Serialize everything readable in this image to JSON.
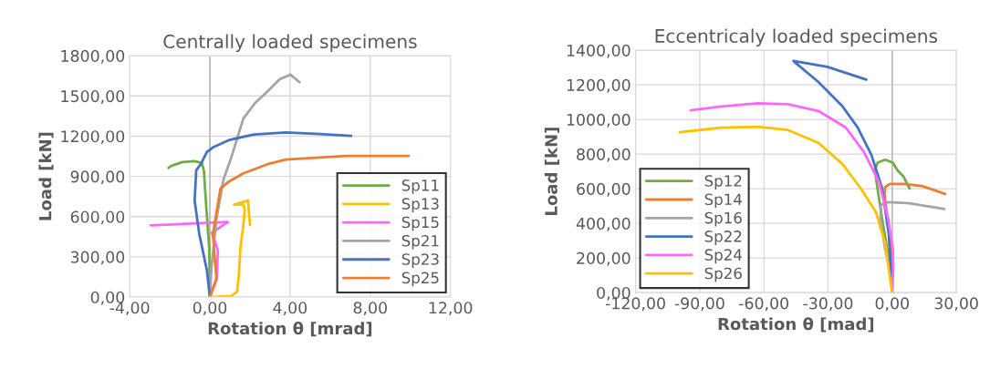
{
  "chart_data": [
    {
      "type": "line",
      "title": "Centrally loaded specimens",
      "xlabel": "Rotation θ [mrad]",
      "ylabel": "Load [kN]",
      "xlim": [
        -4,
        12
      ],
      "ylim": [
        0,
        1800
      ],
      "xticks": [
        {
          "value": -4,
          "label": "-4,00"
        },
        {
          "value": 0,
          "label": "0,00"
        },
        {
          "value": 4,
          "label": "4,00"
        },
        {
          "value": 8,
          "label": "8,00"
        },
        {
          "value": 12,
          "label": "12,00"
        }
      ],
      "yticks": [
        {
          "value": 0,
          "label": "0,00"
        },
        {
          "value": 300,
          "label": "300,00"
        },
        {
          "value": 600,
          "label": "600,00"
        },
        {
          "value": 900,
          "label": "900,00"
        },
        {
          "value": 1200,
          "label": "1200,00"
        },
        {
          "value": 1500,
          "label": "1500,00"
        },
        {
          "value": 1800,
          "label": "1800,00"
        }
      ],
      "grid": true,
      "legend": "bottom right",
      "marker": "none",
      "line_style": "solid",
      "series": [
        {
          "name": "Sp11",
          "color": "#70ad47",
          "x": [
            0,
            -0.03,
            -0.18,
            -0.3,
            -0.4,
            -0.76,
            -1.36,
            -1.9,
            -2.06
          ],
          "values": [
            0,
            360,
            672,
            944,
            1000,
            1014,
            1007,
            980,
            964
          ]
        },
        {
          "name": "Sp13",
          "color": "#ffc000",
          "x": [
            0,
            1.06,
            1.36,
            1.44,
            1.52,
            1.67,
            1.74,
            1.67,
            1.2,
            1.9,
            2.0
          ],
          "values": [
            0,
            7,
            40,
            154,
            358,
            538,
            652,
            690,
            690,
            720,
            540
          ]
        },
        {
          "name": "Sp15",
          "color": "#ff66ff",
          "x": [
            0,
            0.35,
            0.4,
            0.1,
            0.9,
            -2.95
          ],
          "values": [
            0,
            150,
            350,
            480,
            560,
            535
          ]
        },
        {
          "name": "Sp21",
          "color": "#a5a5a5",
          "x": [
            0,
            0.08,
            0.33,
            0.68,
            1.06,
            1.67,
            2.27,
            2.88,
            3.48,
            4.02,
            4.47
          ],
          "values": [
            0,
            222,
            584,
            878,
            1037,
            1331,
            1450,
            1535,
            1625,
            1659,
            1602
          ]
        },
        {
          "name": "Sp23",
          "color": "#4472c4",
          "x": [
            0,
            -0.15,
            -0.53,
            -0.76,
            -0.68,
            -0.45,
            -0.15,
            0.15,
            0.98,
            2.2,
            3.79,
            5.3,
            7.05
          ],
          "values": [
            0,
            200,
            471,
            720,
            946,
            991,
            1082,
            1116,
            1172,
            1213,
            1227,
            1218,
            1202
          ]
        },
        {
          "name": "Sp25",
          "color": "#ed7d31",
          "x": [
            0,
            0.33,
            0.15,
            0.53,
            0.9,
            1.67,
            2.88,
            3.79,
            6.8,
            9.92
          ],
          "values": [
            0,
            131,
            471,
            810,
            856,
            923,
            991,
            1025,
            1052,
            1052
          ]
        }
      ]
    },
    {
      "type": "line",
      "title": "Eccentricaly loaded specimens",
      "xlabel": "Rotation θ [mad]",
      "ylabel": "Load [kN]",
      "xlim": [
        -120,
        30
      ],
      "ylim": [
        0,
        1400
      ],
      "xticks": [
        {
          "value": -120,
          "label": "-120,00"
        },
        {
          "value": -90,
          "label": "-90,00"
        },
        {
          "value": -60,
          "label": "-60,00"
        },
        {
          "value": -30,
          "label": "-30,00"
        },
        {
          "value": 0,
          "label": "0,00"
        },
        {
          "value": 30,
          "label": "30,00"
        }
      ],
      "yticks": [
        {
          "value": 0,
          "label": "0,00"
        },
        {
          "value": 200,
          "label": "200,00"
        },
        {
          "value": 400,
          "label": "400,00"
        },
        {
          "value": 600,
          "label": "600,00"
        },
        {
          "value": 800,
          "label": "800,00"
        },
        {
          "value": 1000,
          "label": "1000,00"
        },
        {
          "value": 1200,
          "label": "1200,00"
        },
        {
          "value": 1400,
          "label": "1400,00"
        }
      ],
      "grid": true,
      "legend": "bottom left",
      "marker": "none",
      "line_style": "solid",
      "series": [
        {
          "name": "Sp12",
          "color": "#70ad47",
          "x": [
            0,
            -0.4,
            -4.7,
            -7.5,
            -8.1,
            -6.8,
            -3.3,
            0.3,
            2.4,
            5.2,
            8.1
          ],
          "values": [
            0,
            105,
            426,
            654,
            707,
            751,
            768,
            751,
            707,
            672,
            602
          ]
        },
        {
          "name": "Sp14",
          "color": "#ed7d31",
          "x": [
            0,
            -0.4,
            -3.6,
            -3.3,
            -1.1,
            5.2,
            13.8,
            24.8
          ],
          "values": [
            0,
            251,
            567,
            610,
            628,
            628,
            616,
            570
          ]
        },
        {
          "name": "Sp16",
          "color": "#a5a5a5",
          "x": [
            0,
            -0.4,
            -3.3,
            -5.4,
            -5.4,
            -1.9,
            8.1,
            24.4
          ],
          "values": [
            0,
            105,
            251,
            426,
            505,
            523,
            516,
            483
          ]
        },
        {
          "name": "Sp22",
          "color": "#4472c4",
          "x": [
            0,
            -1.6,
            -4.7,
            -9.7,
            -16.1,
            -23.2,
            -34.5,
            -45.5,
            -46.2,
            -30.3,
            -12.1
          ],
          "values": [
            0,
            338,
            602,
            795,
            953,
            1075,
            1216,
            1330,
            1338,
            1304,
            1230
          ]
        },
        {
          "name": "Sp24",
          "color": "#ff66ff",
          "x": [
            0,
            0.5,
            0.3,
            -1.9,
            -6.1,
            -13.2,
            -21.7,
            -34.5,
            -48.7,
            -62.9,
            -80,
            -94.2
          ],
          "values": [
            0,
            150,
            252,
            426,
            637,
            812,
            953,
            1049,
            1088,
            1093,
            1075,
            1053
          ]
        },
        {
          "name": "Sp26",
          "color": "#ffc000",
          "x": [
            0,
            -0.4,
            -3.3,
            -7.5,
            -14.7,
            -23.2,
            -34.5,
            -48.7,
            -62.9,
            -80,
            -99.4
          ],
          "values": [
            0,
            30,
            286,
            462,
            602,
            742,
            865,
            939,
            958,
            953,
            926
          ]
        }
      ]
    }
  ]
}
